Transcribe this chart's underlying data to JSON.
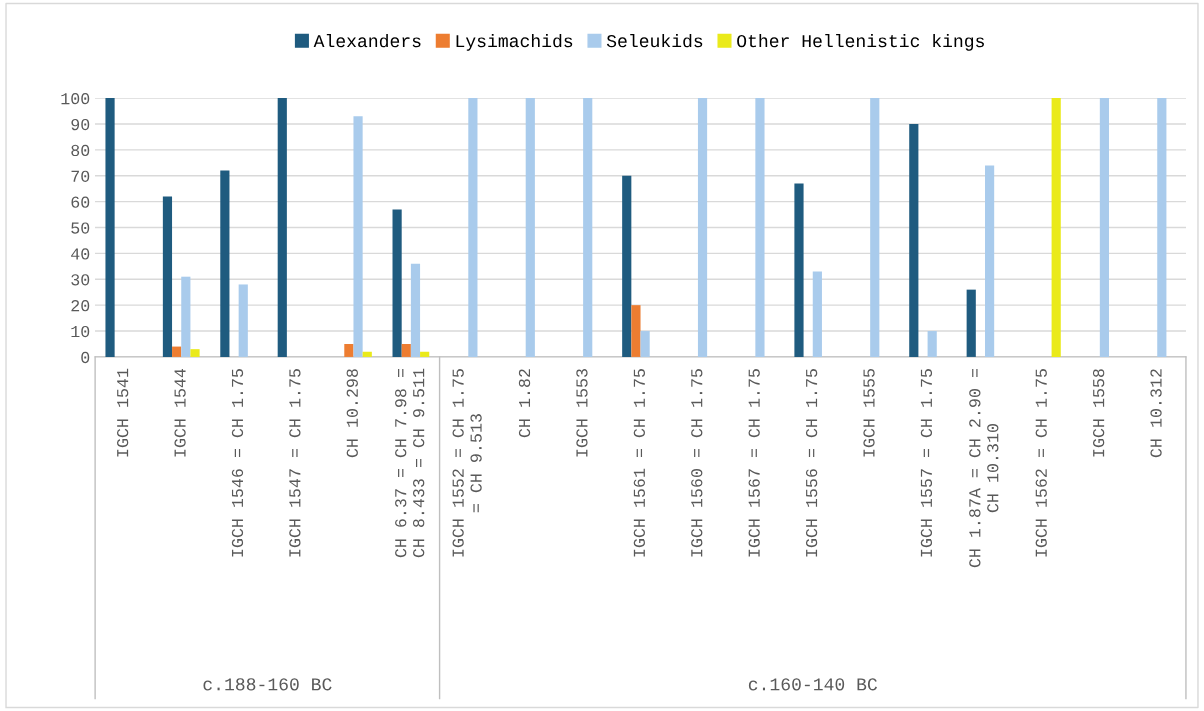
{
  "chart_data": {
    "type": "bar",
    "categories": [
      "IGCH 1541",
      "IGCH 1544",
      "IGCH 1546 = CH 1.75",
      "IGCH 1547 = CH 1.75",
      "CH 10.298",
      "CH 6.37 = CH 7.98 =\nCH 8.433 = CH 9.511",
      "IGCH 1552 = CH 1.75\n= CH 9.513",
      "CH 1.82",
      "IGCH 1553",
      "IGCH 1561 = CH 1.75",
      "IGCH 1560 = CH 1.75",
      "IGCH 1567 = CH 1.75",
      "IGCH 1556 = CH 1.75",
      "IGCH 1555",
      "IGCH 1557 = CH 1.75",
      "CH 1.87A = CH 2.90 =\nCH 10.310",
      "IGCH 1562 = CH 1.75",
      "IGCH 1558",
      "CH 10.312"
    ],
    "series": [
      {
        "name": "Alexanders",
        "color": "#1f5b7f",
        "values": [
          100,
          62,
          72,
          100,
          0,
          57,
          0,
          0,
          0,
          70,
          0,
          0,
          67,
          0,
          90,
          26,
          0,
          0,
          0
        ]
      },
      {
        "name": "Lysimachids",
        "color": "#ed7d31",
        "values": [
          0,
          4,
          0,
          0,
          5,
          5,
          0,
          0,
          0,
          20,
          0,
          0,
          0,
          0,
          0,
          0,
          0,
          0,
          0
        ]
      },
      {
        "name": "Seleukids",
        "color": "#a9cbec",
        "values": [
          0,
          31,
          28,
          0,
          93,
          36,
          100,
          100,
          100,
          10,
          100,
          100,
          33,
          100,
          10,
          74,
          0,
          100,
          100
        ]
      },
      {
        "name": "Other Hellenistic kings",
        "color": "#eaea1a",
        "values": [
          0,
          3,
          0,
          0,
          2,
          2,
          0,
          0,
          0,
          0,
          0,
          0,
          0,
          0,
          0,
          0,
          100,
          0,
          0
        ]
      }
    ],
    "ylim": [
      0,
      100
    ],
    "yticks": [
      0,
      10,
      20,
      30,
      40,
      50,
      60,
      70,
      80,
      90,
      100
    ],
    "grid": "y",
    "legend": "top",
    "annotations": [
      "c.188-160 BC",
      "c.160-140 BC"
    ]
  }
}
